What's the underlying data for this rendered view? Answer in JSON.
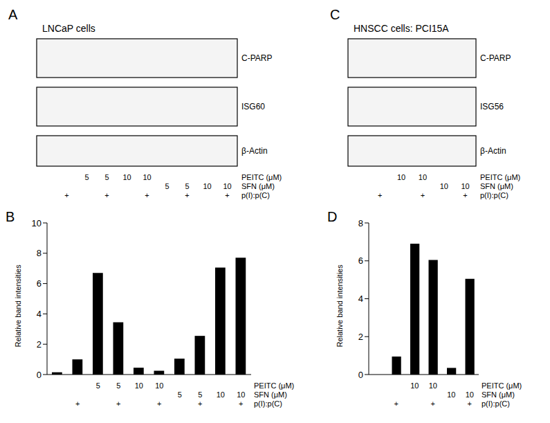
{
  "chart_data": [
    {
      "type": "bar",
      "title": "B",
      "y_label": "Relative band intensities",
      "categories": [
        null,
        null,
        null,
        null,
        null,
        null,
        null,
        null,
        null,
        null
      ],
      "values": [
        0.15,
        1,
        6.7,
        3.45,
        0.45,
        0.25,
        1.05,
        2.55,
        7.05,
        7.7
      ],
      "color": "#000000",
      "ylim": [
        0,
        10
      ],
      "yticks": [
        0,
        2,
        4,
        6,
        8,
        10
      ],
      "treatments": [
        {
          "name": "PEITC (μM)",
          "values": [
            null,
            null,
            5,
            5,
            10,
            10,
            null,
            null,
            null,
            null
          ]
        },
        {
          "name": "SFN (μM)",
          "values": [
            null,
            null,
            null,
            null,
            null,
            null,
            5,
            5,
            10,
            10
          ]
        },
        {
          "name": "p(I):p(C)",
          "values": [
            null,
            "+",
            null,
            "+",
            null,
            "+",
            null,
            "+",
            null,
            "+"
          ]
        }
      ]
    },
    {
      "type": "bar",
      "title": "D",
      "y_label": "Relative band intensities",
      "categories": [
        null,
        null,
        null,
        null,
        null,
        null
      ],
      "values": [
        0,
        0.95,
        6.9,
        6.05,
        0.35,
        5.05
      ],
      "color": "#000000",
      "ylim": [
        0,
        8
      ],
      "yticks": [
        0,
        2,
        4,
        6,
        8
      ],
      "treatments": [
        {
          "name": "PEITC (μM)",
          "values": [
            null,
            null,
            10,
            10,
            null,
            null
          ]
        },
        {
          "name": "SFN (μM)",
          "values": [
            null,
            null,
            null,
            null,
            10,
            10
          ]
        },
        {
          "name": "p(I):p(C)",
          "values": [
            null,
            "+",
            null,
            "+",
            null,
            "+"
          ]
        }
      ]
    }
  ],
  "blots": [
    {
      "title": "A",
      "cells": "LNCaP cells",
      "bands": [
        "C-PARP",
        "ISG60",
        "β-Actin"
      ]
    },
    {
      "title": "C",
      "cells": "HNSCC cells: PCI15A",
      "bands": [
        "C-PARP",
        "ISG56",
        "β-Actin"
      ]
    }
  ]
}
